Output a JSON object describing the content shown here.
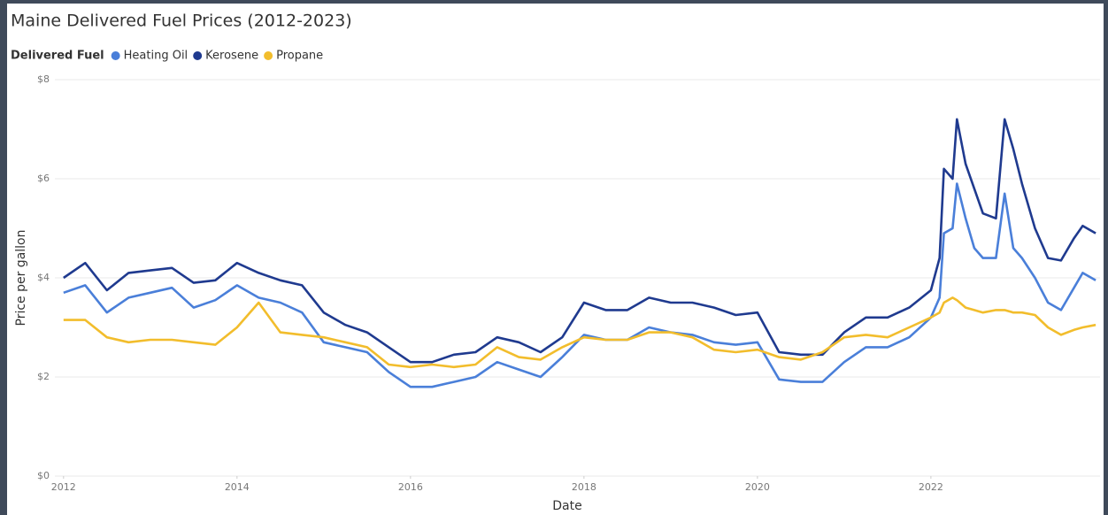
{
  "chart_data": {
    "type": "line",
    "title": "Maine Delivered Fuel Prices (2012-2023)",
    "legend_title": "Delivered Fuel",
    "legend": "top-left",
    "x_label": "Date",
    "y_label": "Price per gallon",
    "grid": true,
    "x": [
      2012.0,
      2012.25,
      2012.5,
      2012.75,
      2013.0,
      2013.25,
      2013.5,
      2013.75,
      2014.0,
      2014.25,
      2014.5,
      2014.75,
      2015.0,
      2015.25,
      2015.5,
      2015.75,
      2016.0,
      2016.25,
      2016.5,
      2016.75,
      2017.0,
      2017.25,
      2017.5,
      2017.75,
      2018.0,
      2018.25,
      2018.5,
      2018.75,
      2019.0,
      2019.25,
      2019.5,
      2019.75,
      2020.0,
      2020.25,
      2020.5,
      2020.75,
      2021.0,
      2021.25,
      2021.5,
      2021.75,
      2022.0,
      2022.1,
      2022.15,
      2022.25,
      2022.3,
      2022.4,
      2022.5,
      2022.6,
      2022.75,
      2022.85,
      2022.95,
      2023.05,
      2023.2,
      2023.35,
      2023.5,
      2023.65,
      2023.75,
      2023.9
    ],
    "series": [
      {
        "name": "Heating Oil",
        "color": "#4a7fd9",
        "values": [
          3.7,
          3.85,
          3.3,
          3.6,
          3.7,
          3.8,
          3.4,
          3.55,
          3.85,
          3.6,
          3.5,
          3.3,
          2.7,
          2.6,
          2.5,
          2.1,
          1.8,
          1.8,
          1.9,
          2.0,
          2.3,
          2.15,
          2.0,
          2.4,
          2.85,
          2.75,
          2.75,
          3.0,
          2.9,
          2.85,
          2.7,
          2.65,
          2.7,
          1.95,
          1.9,
          1.9,
          2.3,
          2.6,
          2.6,
          2.8,
          3.2,
          3.6,
          4.9,
          5.0,
          5.9,
          5.2,
          4.6,
          4.4,
          4.4,
          5.7,
          4.6,
          4.4,
          4.0,
          3.5,
          3.35,
          3.8,
          4.1,
          3.95
        ]
      },
      {
        "name": "Kerosene",
        "color": "#1f3a8f",
        "values": [
          4.0,
          4.3,
          3.75,
          4.1,
          4.15,
          4.2,
          3.9,
          3.95,
          4.3,
          4.1,
          3.95,
          3.85,
          3.3,
          3.05,
          2.9,
          2.6,
          2.3,
          2.3,
          2.45,
          2.5,
          2.8,
          2.7,
          2.5,
          2.8,
          3.5,
          3.35,
          3.35,
          3.6,
          3.5,
          3.5,
          3.4,
          3.25,
          3.3,
          2.5,
          2.45,
          2.45,
          2.9,
          3.2,
          3.2,
          3.4,
          3.75,
          4.4,
          6.2,
          6.0,
          7.2,
          6.3,
          5.8,
          5.3,
          5.2,
          7.2,
          6.6,
          5.9,
          5.0,
          4.4,
          4.35,
          4.8,
          5.05,
          4.9
        ]
      },
      {
        "name": "Propane",
        "color": "#f2bd2c",
        "values": [
          3.15,
          3.15,
          2.8,
          2.7,
          2.75,
          2.75,
          2.7,
          2.65,
          3.0,
          3.5,
          2.9,
          2.85,
          2.8,
          2.7,
          2.6,
          2.25,
          2.2,
          2.25,
          2.2,
          2.25,
          2.6,
          2.4,
          2.35,
          2.6,
          2.8,
          2.75,
          2.75,
          2.9,
          2.9,
          2.8,
          2.55,
          2.5,
          2.55,
          2.4,
          2.35,
          2.5,
          2.8,
          2.85,
          2.8,
          3.0,
          3.2,
          3.3,
          3.5,
          3.6,
          3.55,
          3.4,
          3.35,
          3.3,
          3.35,
          3.35,
          3.3,
          3.3,
          3.25,
          3.0,
          2.85,
          2.95,
          3.0,
          3.05
        ]
      }
    ],
    "xlim": [
      2011.9,
      2023.95
    ],
    "xticks": [
      2012,
      2014,
      2016,
      2018,
      2020,
      2022
    ],
    "ylim": [
      0,
      8
    ],
    "yticks": [
      {
        "value": 0,
        "label": "$0"
      },
      {
        "value": 2,
        "label": "$2"
      },
      {
        "value": 4,
        "label": "$4"
      },
      {
        "value": 6,
        "label": "$6"
      },
      {
        "value": 8,
        "label": "$8"
      }
    ]
  }
}
